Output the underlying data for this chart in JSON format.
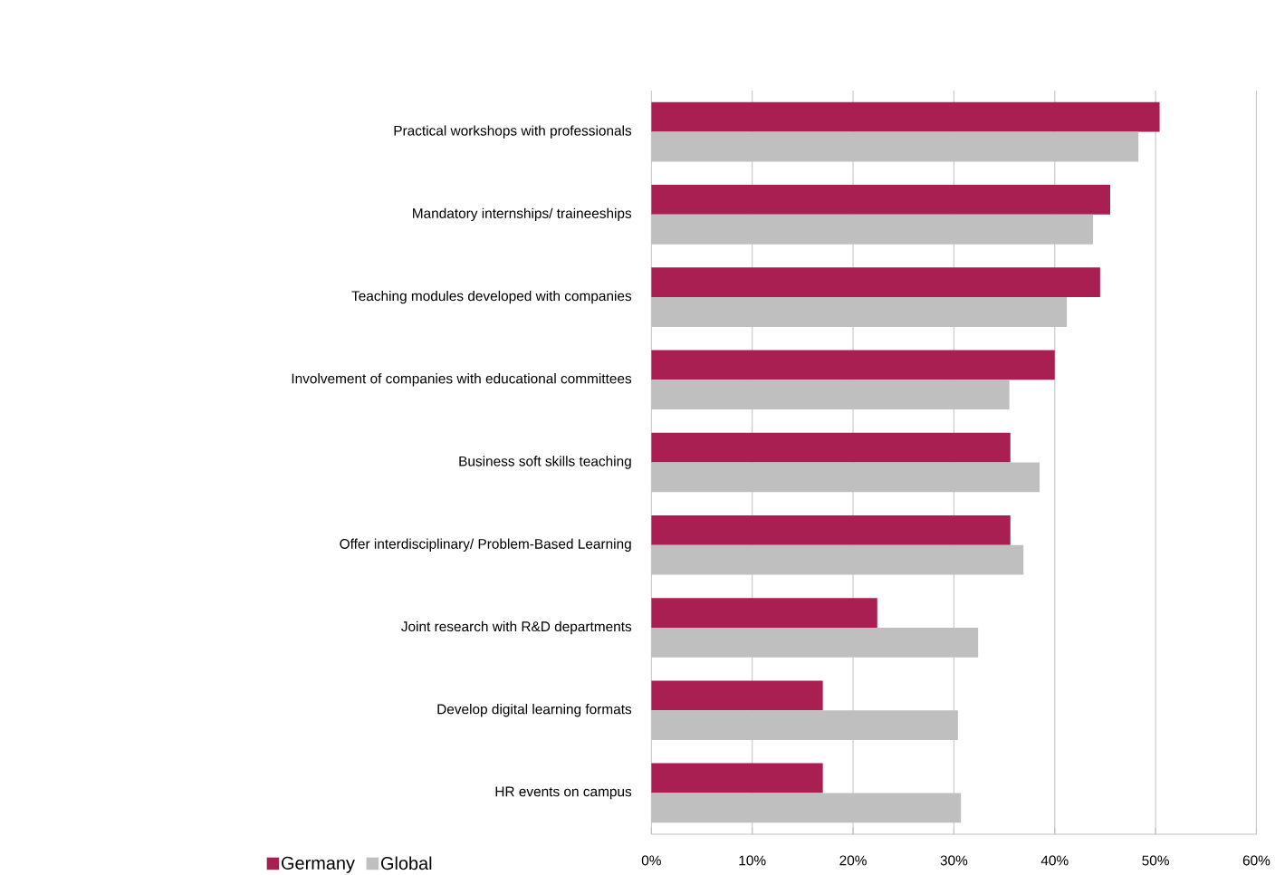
{
  "chart_data": {
    "type": "bar",
    "orientation": "horizontal",
    "categories": [
      "Practical workshops with professionals",
      "Mandatory internships/ traineeships",
      "Teaching modules developed with companies",
      "Involvement of companies with educational committees",
      "Business soft skills teaching",
      "Offer interdisciplinary/ Problem-Based Learning",
      "Joint research with R&D departments",
      "Develop digital learning formats",
      "HR events on campus"
    ],
    "series": [
      {
        "name": "Germany",
        "color": "#a91f51",
        "values": [
          50.4,
          45.5,
          44.5,
          40.0,
          35.6,
          35.6,
          22.4,
          17.0,
          17.0
        ]
      },
      {
        "name": "Global",
        "color": "#bfbfbf",
        "values": [
          48.3,
          43.8,
          41.2,
          35.5,
          38.5,
          36.9,
          32.4,
          30.4,
          30.7
        ]
      }
    ],
    "xlim": [
      0,
      60
    ],
    "xticks": [
      {
        "value": 0,
        "label": "0%"
      },
      {
        "value": 10,
        "label": "10%"
      },
      {
        "value": 20,
        "label": "20%"
      },
      {
        "value": 30,
        "label": "30%"
      },
      {
        "value": 40,
        "label": "40%"
      },
      {
        "value": 50,
        "label": "50%"
      },
      {
        "value": 60,
        "label": "60%"
      }
    ],
    "grid": "x",
    "legend": "bottom left"
  }
}
